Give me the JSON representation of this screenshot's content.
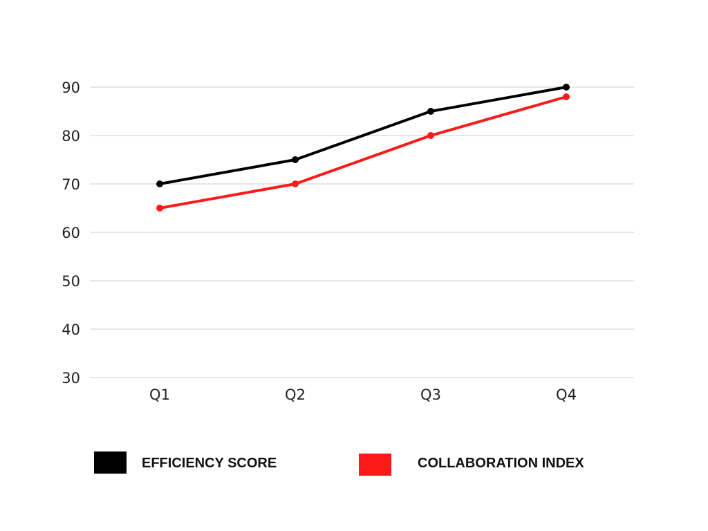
{
  "chart_data": {
    "type": "line",
    "title": "",
    "xlabel": "",
    "ylabel": "",
    "categories": [
      "Q1",
      "Q2",
      "Q3",
      "Q4"
    ],
    "ylim": [
      30,
      90
    ],
    "yticks": [
      30,
      40,
      50,
      60,
      70,
      80,
      90
    ],
    "grid": true,
    "legend_position": "bottom",
    "series": [
      {
        "name": "EFFICIENCY SCORE",
        "color": "#000000",
        "values": [
          70,
          75,
          85,
          90
        ]
      },
      {
        "name": "COLLABORATION INDEX",
        "color": "#ff1a1a",
        "values": [
          65,
          70,
          80,
          88
        ]
      }
    ]
  }
}
